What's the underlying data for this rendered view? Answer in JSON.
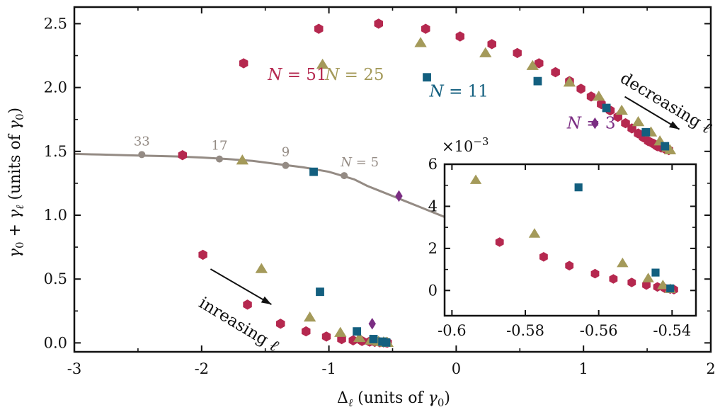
{
  "colors": {
    "N51": "#b5284f",
    "N25": "#a49a5a",
    "N11": "#135f7f",
    "N3": "#7b2e83",
    "curve": "#948b84",
    "axis": "#111111"
  },
  "chart_data": [
    {
      "type": "scatter",
      "xlabel": "Δ_ℓ  (units of γ_0)",
      "ylabel": "γ_0 + γ_ℓ  (units of γ_0)",
      "xlim": [
        -3,
        2
      ],
      "ylim": [
        -0.07,
        2.63
      ],
      "xticks": [
        -3,
        -2,
        -1,
        0,
        1,
        2
      ],
      "yticks": [
        0.0,
        0.5,
        1.0,
        1.5,
        2.0,
        2.5
      ],
      "ytick_labels": [
        "0.0",
        "0.5",
        "1.0",
        "1.5",
        "2.0",
        "2.5"
      ],
      "grid": false,
      "legend": "none",
      "curve": {
        "name": "γ_0 + γ_1 curve",
        "x": [
          -3.0,
          -2.8,
          -2.6,
          -2.4,
          -2.2,
          -2.0,
          -1.8,
          -1.6,
          -1.4,
          -1.2,
          -1.0,
          -0.9,
          -0.8,
          -0.7,
          -0.6,
          -0.5,
          -0.4,
          -0.3,
          -0.2,
          -0.1,
          0.0,
          0.1
        ],
        "y": [
          1.48,
          1.475,
          1.47,
          1.465,
          1.46,
          1.452,
          1.44,
          1.425,
          1.4,
          1.375,
          1.34,
          1.31,
          1.28,
          1.23,
          1.19,
          1.15,
          1.11,
          1.07,
          1.03,
          0.99,
          0.95,
          0.92
        ],
        "markers": [
          {
            "x": -2.47,
            "y": 1.475,
            "label": "33"
          },
          {
            "x": -1.86,
            "y": 1.44,
            "label": "17"
          },
          {
            "x": -1.34,
            "y": 1.39,
            "label": "9"
          },
          {
            "x": -0.88,
            "y": 1.31,
            "label": "N = 5"
          }
        ]
      },
      "series": [
        {
          "name": "N = 51",
          "marker": "hexagon",
          "points": [
            [
              -1.08,
              2.46
            ],
            [
              -0.61,
              2.5
            ],
            [
              -0.24,
              2.46
            ],
            [
              0.03,
              2.4
            ],
            [
              0.28,
              2.34
            ],
            [
              0.48,
              2.27
            ],
            [
              0.65,
              2.19
            ],
            [
              0.78,
              2.12
            ],
            [
              0.89,
              2.05
            ],
            [
              0.98,
              1.99
            ],
            [
              1.06,
              1.93
            ],
            [
              1.14,
              1.87
            ],
            [
              1.21,
              1.82
            ],
            [
              1.27,
              1.77
            ],
            [
              1.33,
              1.72
            ],
            [
              1.38,
              1.68
            ],
            [
              1.43,
              1.64
            ],
            [
              1.47,
              1.61
            ],
            [
              1.51,
              1.58
            ],
            [
              1.55,
              1.56
            ],
            [
              1.58,
              1.54
            ],
            [
              1.61,
              1.53
            ],
            [
              1.64,
              1.52
            ],
            [
              1.67,
              1.51
            ],
            [
              -1.67,
              2.19
            ],
            [
              -2.15,
              1.47
            ],
            [
              -1.99,
              0.69
            ],
            [
              -1.64,
              0.3
            ],
            [
              -1.38,
              0.15
            ],
            [
              -1.18,
              0.09
            ],
            [
              -1.02,
              0.05
            ],
            [
              -0.9,
              0.03
            ],
            [
              -0.81,
              0.02
            ],
            [
              -0.74,
              0.015
            ],
            [
              -0.68,
              0.01
            ],
            [
              -0.64,
              0.008
            ],
            [
              -0.6,
              0.005
            ],
            [
              -0.57,
              0.004
            ],
            [
              -0.55,
              0.003
            ],
            [
              -0.54,
              0.002
            ]
          ]
        },
        {
          "name": "N = 25",
          "marker": "triangle",
          "points": [
            [
              -1.05,
              2.18
            ],
            [
              -0.28,
              2.35
            ],
            [
              0.23,
              2.27
            ],
            [
              0.6,
              2.17
            ],
            [
              0.89,
              2.04
            ],
            [
              1.12,
              1.93
            ],
            [
              1.3,
              1.82
            ],
            [
              1.43,
              1.73
            ],
            [
              1.53,
              1.65
            ],
            [
              1.6,
              1.58
            ],
            [
              1.66,
              1.53
            ],
            [
              1.68,
              1.51
            ],
            [
              -1.68,
              1.43
            ],
            [
              -1.53,
              0.58
            ],
            [
              -1.15,
              0.2
            ],
            [
              -0.91,
              0.08
            ],
            [
              -0.76,
              0.04
            ],
            [
              -0.67,
              0.02
            ],
            [
              -0.61,
              0.01
            ],
            [
              -0.57,
              0.006
            ],
            [
              -0.55,
              0.003
            ],
            [
              -0.54,
              0.002
            ]
          ]
        },
        {
          "name": "N = 11",
          "marker": "square",
          "points": [
            [
              -0.23,
              2.08
            ],
            [
              0.64,
              2.05
            ],
            [
              1.18,
              1.84
            ],
            [
              1.49,
              1.65
            ],
            [
              1.64,
              1.54
            ],
            [
              -1.12,
              1.34
            ],
            [
              -1.07,
              0.4
            ],
            [
              -0.78,
              0.09
            ],
            [
              -0.65,
              0.03
            ],
            [
              -0.58,
              0.01
            ],
            [
              -0.55,
              0.003
            ]
          ]
        },
        {
          "name": "N = 3",
          "marker": "diamond",
          "points": [
            [
              1.09,
              1.72
            ],
            [
              -0.45,
              1.15
            ],
            [
              -0.66,
              0.15
            ]
          ]
        }
      ],
      "annotations": [
        {
          "text": "N = 51",
          "x": -1.48,
          "y": 2.06,
          "color": "N51"
        },
        {
          "text": "N = 25",
          "x": -1.03,
          "y": 2.06,
          "color": "N25"
        },
        {
          "text": "N = 11",
          "x": -0.21,
          "y": 1.93,
          "color": "N11"
        },
        {
          "text": "N = 3",
          "x": 0.87,
          "y": 1.68,
          "color": "N3"
        },
        {
          "text": "decreasing ℓ",
          "x": 1.28,
          "y": 2.05,
          "color": "axis"
        },
        {
          "text": "inreasing ℓ",
          "x": -2.03,
          "y": 0.29,
          "color": "axis"
        }
      ]
    },
    {
      "type": "scatter",
      "name": "inset",
      "multiplier": "×10⁻³",
      "xlim": [
        -0.602,
        -0.5335
      ],
      "ylim": [
        -1.2,
        6.0
      ],
      "xticks": [
        -0.6,
        -0.58,
        -0.56,
        -0.54
      ],
      "xtick_labels": [
        "-0.6",
        "-0.58",
        "-0.56",
        "-0.54"
      ],
      "yticks": [
        0,
        2,
        4,
        6
      ],
      "grid": false,
      "series": [
        {
          "name": "N = 51",
          "marker": "hexagon",
          "points": [
            [
              -0.587,
              2.3
            ],
            [
              -0.575,
              1.6
            ],
            [
              -0.568,
              1.18
            ],
            [
              -0.561,
              0.8
            ],
            [
              -0.556,
              0.55
            ],
            [
              -0.551,
              0.38
            ],
            [
              -0.547,
              0.26
            ],
            [
              -0.544,
              0.17
            ],
            [
              -0.542,
              0.11
            ],
            [
              -0.5405,
              0.07
            ],
            [
              -0.5395,
              0.04
            ]
          ]
        },
        {
          "name": "N = 25",
          "marker": "triangle",
          "points": [
            [
              -0.5935,
              5.25
            ],
            [
              -0.5775,
              2.7
            ],
            [
              -0.5535,
              1.3
            ],
            [
              -0.5465,
              0.58
            ],
            [
              -0.5425,
              0.25
            ],
            [
              -0.5405,
              0.07
            ]
          ]
        },
        {
          "name": "N = 11",
          "marker": "square",
          "points": [
            [
              -0.5655,
              4.9
            ],
            [
              -0.5445,
              0.85
            ],
            [
              -0.5405,
              0.1
            ]
          ]
        }
      ]
    }
  ]
}
